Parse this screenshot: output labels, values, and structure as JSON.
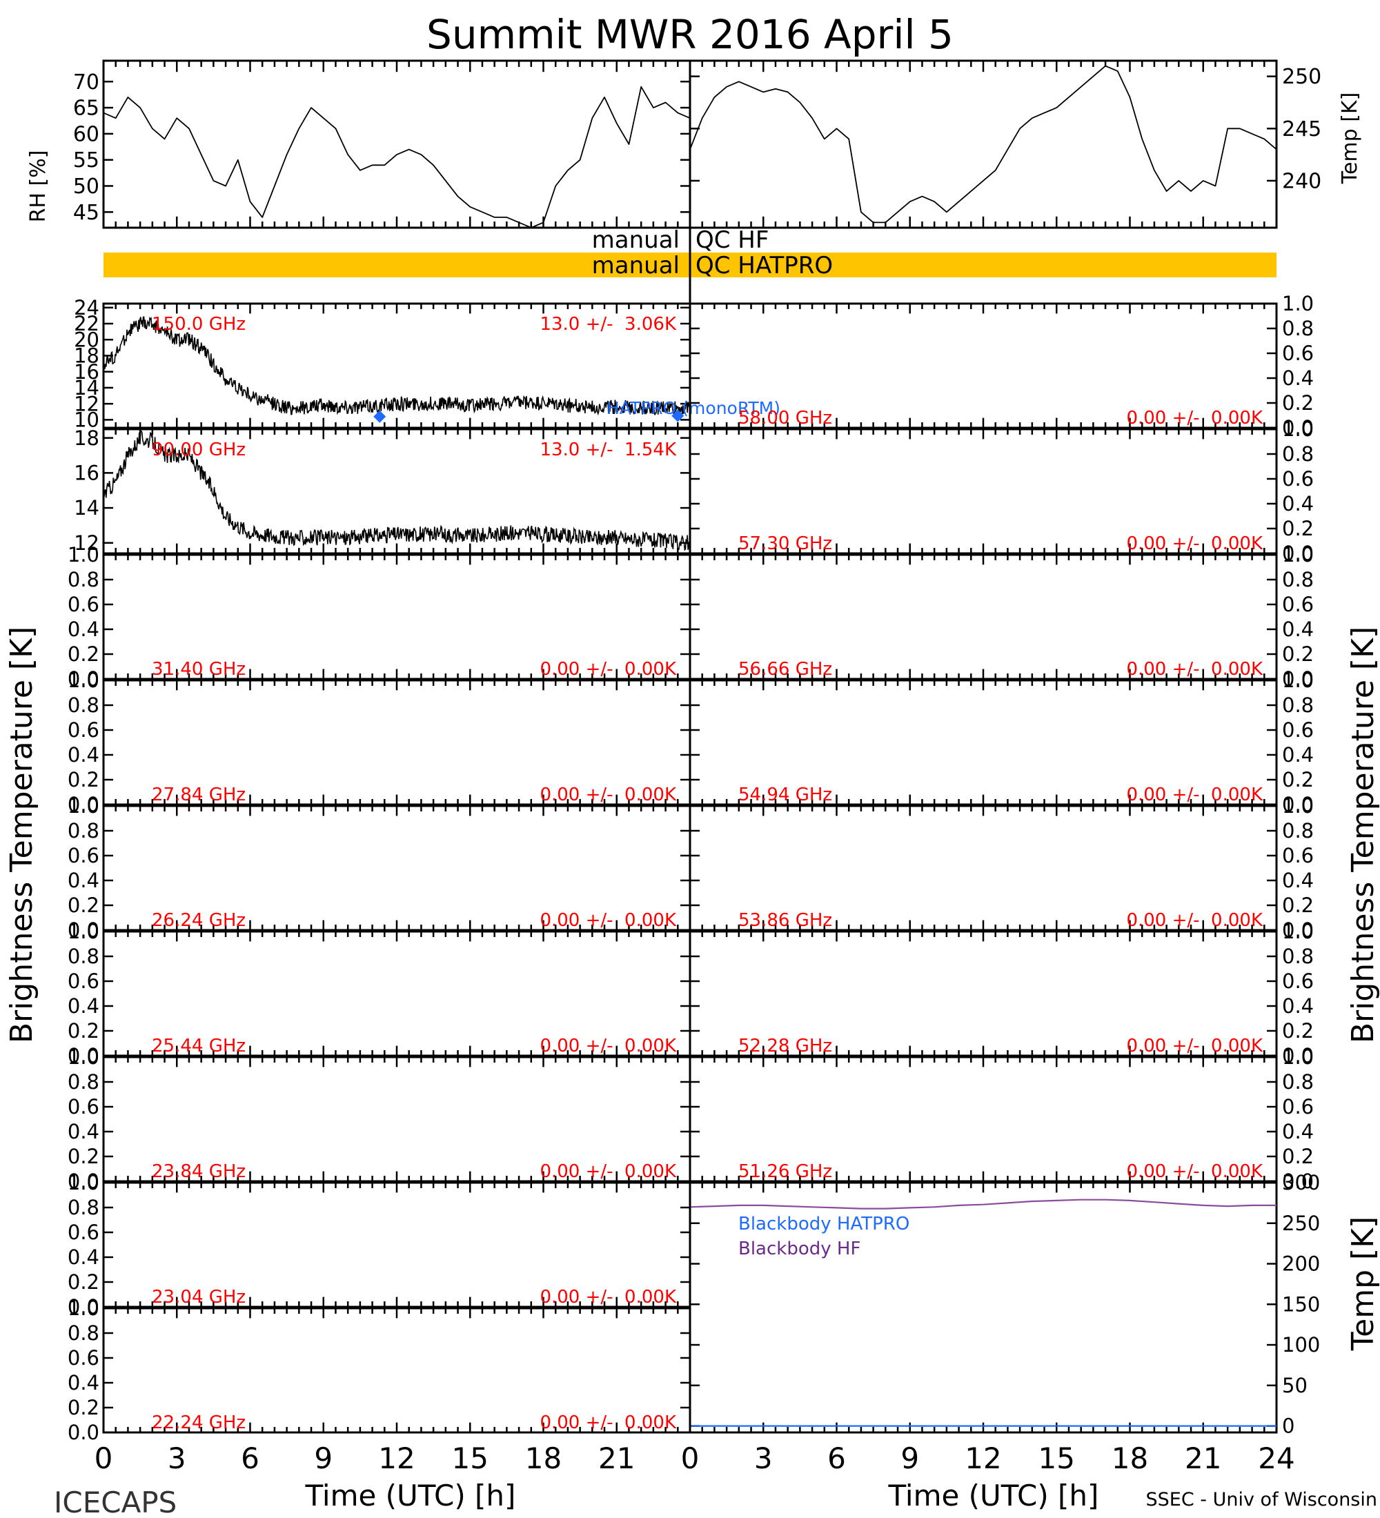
{
  "title": "Summit MWR 2016 April  5",
  "footer": {
    "left": "ICECAPS",
    "right": "SSEC - Univ of Wisconsin",
    "xlabel_left": "Time (UTC) [h]",
    "xlabel_right": "Time (UTC) [h]"
  },
  "axis_labels": {
    "rh": "RH [%]",
    "temp_top": "Temp [K]",
    "tb_left": "Brightness Temperature [K]",
    "tb_right": "Brightness Temperature [K]",
    "temp_bottom": "Temp [K]"
  },
  "qc_bars": [
    {
      "left": "manual",
      "right": "QC HF",
      "color": "#ffffff"
    },
    {
      "left": "manual",
      "right": "QC HATPRO",
      "color": "#FFC400"
    }
  ],
  "colors": {
    "qc_hatpro": "#FFC400",
    "label_red": "#FF0000",
    "blue": "#1E6BFF",
    "purple": "#6A2A8C",
    "bb_line": "#8B4C9E"
  },
  "chart_data": [
    {
      "type": "line",
      "id": "rh",
      "panel": "top-left",
      "ylabel": "RH [%]",
      "xlim": [
        0,
        24
      ],
      "ylim": [
        42,
        74
      ],
      "yticks": [
        45,
        50,
        55,
        60,
        65,
        70
      ],
      "x": [
        0,
        0.5,
        1,
        1.5,
        2,
        2.5,
        3,
        3.5,
        4,
        4.5,
        5,
        5.5,
        6,
        6.5,
        7,
        7.5,
        8,
        8.5,
        9,
        9.5,
        10,
        10.5,
        11,
        11.5,
        12,
        12.5,
        13,
        13.5,
        14,
        14.5,
        15,
        15.5,
        16,
        16.5,
        17,
        17.5,
        18,
        18.5,
        19,
        19.5,
        20,
        20.5,
        21,
        21.5,
        22,
        22.5,
        23,
        23.5,
        24
      ],
      "y": [
        64,
        63,
        67,
        65,
        61,
        59,
        63,
        61,
        56,
        51,
        50,
        55,
        47,
        44,
        50,
        56,
        61,
        65,
        63,
        61,
        56,
        53,
        54,
        54,
        56,
        57,
        56,
        54,
        51,
        48,
        46,
        45,
        44,
        44,
        43,
        42,
        43,
        50,
        53,
        55,
        63,
        67,
        62,
        58,
        69,
        65,
        66,
        64,
        63
      ]
    },
    {
      "type": "line",
      "id": "temp",
      "panel": "top-right",
      "ylabel": "Temp [K]",
      "xlim": [
        0,
        24
      ],
      "ylim": [
        235.5,
        251.5
      ],
      "yticks": [
        240,
        245,
        250
      ],
      "x": [
        0,
        0.5,
        1,
        1.5,
        2,
        2.5,
        3,
        3.5,
        4,
        4.5,
        5,
        5.5,
        6,
        6.5,
        7,
        7.5,
        8,
        8.5,
        9,
        9.5,
        10,
        10.5,
        11,
        11.5,
        12,
        12.5,
        13,
        13.5,
        14,
        14.5,
        15,
        15.5,
        16,
        16.5,
        17,
        17.5,
        18,
        18.5,
        19,
        19.5,
        20,
        20.5,
        21,
        21.5,
        22,
        22.5,
        23,
        23.5,
        24
      ],
      "y": [
        243,
        246,
        248,
        249,
        249.5,
        249,
        248.5,
        248.8,
        248.5,
        247.5,
        246,
        244,
        245,
        244,
        237,
        236,
        236,
        237,
        238,
        238.5,
        238,
        237,
        238,
        239,
        240,
        241,
        243,
        245,
        246,
        246.5,
        247,
        248,
        249,
        250,
        251,
        250.5,
        248,
        244,
        241,
        239,
        240,
        239,
        240,
        239.5,
        245,
        245,
        244.5,
        244,
        243
      ]
    },
    {
      "type": "line",
      "id": "tb-150",
      "freq": "150.0 GHz",
      "stat": "13.0 +/-  3.06K",
      "xlim": [
        0,
        24
      ],
      "ylim": [
        9,
        24.5
      ],
      "yticks": [
        10,
        12,
        14,
        16,
        18,
        20,
        22,
        24
      ],
      "x": [
        0,
        0.5,
        1,
        1.5,
        2,
        2.5,
        3,
        3.5,
        4,
        4.5,
        5,
        5.5,
        6,
        6.5,
        7,
        7.5,
        8,
        9,
        10,
        11,
        12,
        13,
        14,
        15,
        16,
        17,
        18,
        19,
        20,
        21,
        22,
        23,
        24
      ],
      "y": [
        17,
        18,
        21,
        22,
        22,
        21,
        20,
        20,
        19,
        17,
        15,
        14,
        13,
        12.5,
        12,
        11.5,
        11.5,
        11.8,
        11.6,
        11.7,
        12,
        12,
        12,
        11.8,
        12,
        12.1,
        12,
        11.8,
        11.6,
        11.6,
        11.5,
        11.5,
        11.5
      ],
      "markers": {
        "label": "HATPRO (monoRTM)",
        "x": [
          11.3,
          23.5
        ],
        "y": [
          10.4,
          10.5
        ]
      }
    },
    {
      "type": "line",
      "id": "tb-90",
      "freq": "90.00 GHz",
      "stat": "13.0 +/-  1.54K",
      "xlim": [
        0,
        24
      ],
      "ylim": [
        11.4,
        18.5
      ],
      "yticks": [
        12,
        14,
        16,
        18
      ],
      "x": [
        0,
        0.5,
        1,
        1.5,
        2,
        2.5,
        3,
        3.5,
        4,
        4.5,
        5,
        5.5,
        6,
        6.5,
        7,
        7.5,
        8,
        9,
        10,
        11,
        12,
        13,
        14,
        15,
        16,
        17,
        18,
        19,
        20,
        21,
        22,
        23,
        24
      ],
      "y": [
        14.8,
        15.5,
        17,
        18,
        17.8,
        17,
        17,
        17,
        16,
        15,
        13.5,
        13,
        12.6,
        12.5,
        12.4,
        12.3,
        12.3,
        12.3,
        12.3,
        12.4,
        12.5,
        12.5,
        12.5,
        12.4,
        12.5,
        12.6,
        12.5,
        12.4,
        12.3,
        12.3,
        12.2,
        12.1,
        12.0
      ]
    },
    {
      "type": "line",
      "id": "tb-58.00",
      "freq": "58.00 GHz",
      "stat": "0.00 +/-  0.00K",
      "ylim": [
        0,
        1
      ]
    },
    {
      "type": "line",
      "id": "tb-57.30",
      "freq": "57.30 GHz",
      "stat": "0.00 +/-  0.00K",
      "ylim": [
        0,
        1
      ]
    },
    {
      "type": "line",
      "id": "tb-31.40",
      "freq": "31.40 GHz",
      "stat": "0.00 +/-  0.00K",
      "ylim": [
        0,
        1
      ]
    },
    {
      "type": "line",
      "id": "tb-56.66",
      "freq": "56.66 GHz",
      "stat": "0.00 +/-  0.00K",
      "ylim": [
        0,
        1
      ]
    },
    {
      "type": "line",
      "id": "tb-27.84",
      "freq": "27.84 GHz",
      "stat": "0.00 +/-  0.00K",
      "ylim": [
        0,
        1
      ]
    },
    {
      "type": "line",
      "id": "tb-54.94",
      "freq": "54.94 GHz",
      "stat": "0.00 +/-  0.00K",
      "ylim": [
        0,
        1
      ]
    },
    {
      "type": "line",
      "id": "tb-26.24",
      "freq": "26.24 GHz",
      "stat": "0.00 +/-  0.00K",
      "ylim": [
        0,
        1
      ]
    },
    {
      "type": "line",
      "id": "tb-53.86",
      "freq": "53.86 GHz",
      "stat": "0.00 +/-  0.00K",
      "ylim": [
        0,
        1
      ]
    },
    {
      "type": "line",
      "id": "tb-25.44",
      "freq": "25.44 GHz",
      "stat": "0.00 +/-  0.00K",
      "ylim": [
        0,
        1
      ]
    },
    {
      "type": "line",
      "id": "tb-52.28",
      "freq": "52.28 GHz",
      "stat": "0.00 +/-  0.00K",
      "ylim": [
        0,
        1
      ]
    },
    {
      "type": "line",
      "id": "tb-23.84",
      "freq": "23.84 GHz",
      "stat": "0.00 +/-  0.00K",
      "ylim": [
        0,
        1
      ]
    },
    {
      "type": "line",
      "id": "tb-51.26",
      "freq": "51.26 GHz",
      "stat": "0.00 +/-  0.00K",
      "ylim": [
        0,
        1
      ]
    },
    {
      "type": "line",
      "id": "tb-23.04",
      "freq": "23.04 GHz",
      "stat": "0.00 +/-  0.00K",
      "ylim": [
        0,
        1
      ]
    },
    {
      "type": "line",
      "id": "tb-22.24",
      "freq": "22.24 GHz",
      "stat": "0.00 +/-  0.00K",
      "ylim": [
        0,
        1
      ]
    },
    {
      "type": "line",
      "id": "blackbody",
      "ylabel": "Temp [K]",
      "xlim": [
        0,
        24
      ],
      "ylim": [
        -8,
        300
      ],
      "yticks": [
        0,
        50,
        100,
        150,
        200,
        250,
        300
      ],
      "series": [
        {
          "name": "Blackbody HATPRO",
          "color": "#1E6BFF",
          "x": [
            0,
            24
          ],
          "y": [
            0,
            0
          ]
        },
        {
          "name": "Blackbody HF",
          "color": "#8B4C9E",
          "x": [
            0,
            1,
            2,
            3,
            4,
            5,
            6,
            7,
            8,
            9,
            10,
            11,
            12,
            13,
            14,
            15,
            16,
            17,
            18,
            19,
            20,
            21,
            22,
            23,
            24
          ],
          "y": [
            270,
            271,
            272,
            272,
            271,
            270,
            269,
            268,
            268,
            269,
            270,
            272,
            273,
            275,
            277,
            278,
            279,
            279,
            278,
            276,
            274,
            272,
            271,
            272,
            272
          ]
        }
      ]
    }
  ],
  "ticks": {
    "x_values": [
      0,
      3,
      6,
      9,
      12,
      15,
      18,
      21,
      24
    ],
    "x_labels_left": [
      "0",
      "3",
      "6",
      "9",
      "12",
      "15",
      "18",
      "21"
    ],
    "x_labels_right": [
      "0",
      "3",
      "6",
      "9",
      "12",
      "15",
      "18",
      "21",
      "24"
    ],
    "unit_ticks": [
      "0.0",
      "0.2",
      "0.4",
      "0.6",
      "0.8",
      "1.0"
    ]
  }
}
